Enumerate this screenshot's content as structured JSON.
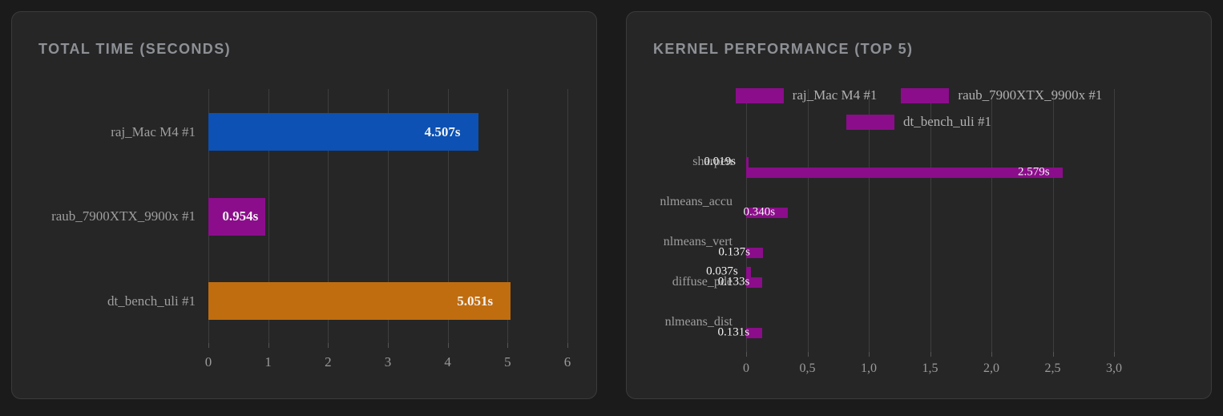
{
  "colors": {
    "page_bg": "#1b1b1b",
    "panel_bg": "#262626",
    "grid": "#3e3e3e",
    "series_blue": "#0c51b3",
    "series_purple": "#8b0d8b",
    "series_orange": "#c06d10"
  },
  "left_panel": {
    "title": "TOTAL TIME (SECONDS)",
    "chart_data": {
      "type": "bar",
      "orientation": "horizontal",
      "title": "TOTAL TIME (SECONDS)",
      "categories": [
        "raj_Mac M4 #1",
        "raub_7900XTX_9900x #1",
        "dt_bench_uli #1"
      ],
      "values": [
        4.507,
        0.954,
        5.051
      ],
      "value_labels": [
        "4.507s",
        "0.954s",
        "5.051s"
      ],
      "bar_colors": [
        "#0c51b3",
        "#8b0d8b",
        "#c06d10"
      ],
      "xlim": [
        0,
        6
      ],
      "x_ticks": [
        "0",
        "1",
        "2",
        "3",
        "4",
        "5",
        "6"
      ],
      "grid": true,
      "legend": false
    }
  },
  "right_panel": {
    "title": "KERNEL PERFORMANCE (TOP 5)",
    "legend": {
      "row1": [
        {
          "label": "raj_Mac M4 #1",
          "color": "#8b0d8b"
        },
        {
          "label": "raub_7900XTX_9900x #1",
          "color": "#8b0d8b"
        }
      ],
      "row2": [
        {
          "label": "dt_bench_uli #1",
          "color": "#8b0d8b"
        }
      ]
    },
    "chart_data": {
      "type": "bar",
      "orientation": "horizontal",
      "title": "KERNEL PERFORMANCE (TOP 5)",
      "categories": [
        "sharpen",
        "nlmeans_accu",
        "nlmeans_vert",
        "diffuse_pde",
        "nlmeans_dist"
      ],
      "series": [
        {
          "name": "raj_Mac M4 #1",
          "color": "#8b0d8b",
          "values": [
            null,
            null,
            null,
            0.037,
            null
          ],
          "value_labels": [
            null,
            null,
            null,
            "0.037s",
            null
          ]
        },
        {
          "name": "raub_7900XTX_9900x #1",
          "color": "#8b0d8b",
          "values": [
            0.019,
            null,
            null,
            0.133,
            null
          ],
          "value_labels": [
            "0.019s",
            null,
            null,
            "0.133s",
            null
          ]
        },
        {
          "name": "dt_bench_uli #1",
          "color": "#8b0d8b",
          "values": [
            2.579,
            0.34,
            0.137,
            null,
            0.131
          ],
          "value_labels": [
            "2.579s",
            "0.340s",
            "0.137s",
            null,
            "0.131s"
          ]
        }
      ],
      "xlim": [
        0,
        3
      ],
      "x_ticks": [
        "0",
        "0,5",
        "1,0",
        "1,5",
        "2,0",
        "2,5",
        "3,0"
      ],
      "grid": true,
      "legend_position": "top"
    }
  }
}
